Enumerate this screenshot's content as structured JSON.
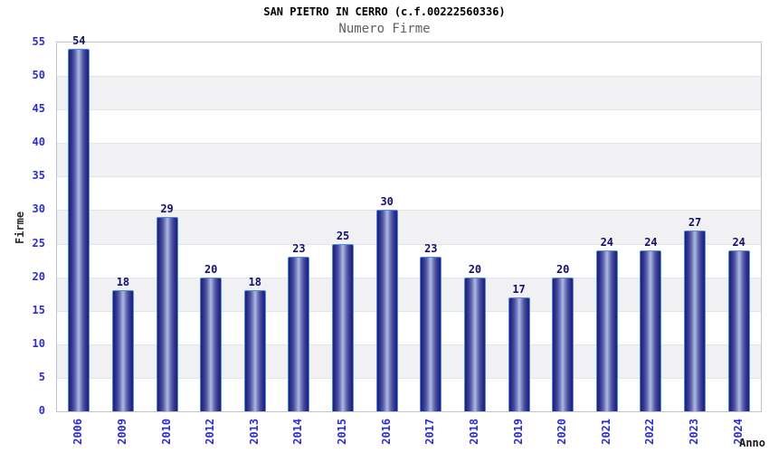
{
  "header": {
    "title": "SAN PIETRO IN CERRO (c.f.00222560336)",
    "subtitle": "Numero Firme"
  },
  "axes": {
    "ylabel": "Firme",
    "xlabel": "Anno"
  },
  "chart_data": {
    "type": "bar",
    "title": "SAN PIETRO IN CERRO (c.f.00222560336)",
    "subtitle": "Numero Firme",
    "xlabel": "Anno",
    "ylabel": "Firme",
    "categories": [
      "2006",
      "2009",
      "2010",
      "2012",
      "2013",
      "2014",
      "2015",
      "2016",
      "2017",
      "2018",
      "2019",
      "2020",
      "2021",
      "2022",
      "2023",
      "2024"
    ],
    "values": [
      54,
      18,
      29,
      20,
      18,
      23,
      25,
      30,
      23,
      20,
      17,
      20,
      24,
      24,
      27,
      24
    ],
    "ylim": [
      0,
      55
    ],
    "ytick_step": 5,
    "yticks": [
      0,
      5,
      10,
      15,
      20,
      25,
      30,
      35,
      40,
      45,
      50,
      55
    ],
    "grid": "horizontal gridlines every 5 with alternating white/gray bands",
    "legend": "none",
    "bar_value_labels": "above each bar",
    "colors": {
      "bar_dark": "#21216f",
      "bar_light": "#b2bae2",
      "bar_border": "#4a8ce8",
      "axis_tick_label": "#2d2dcf",
      "value_label": "#12126b",
      "band_gray": "#f1f1f4",
      "gridline": "#e3e3e8",
      "plot_border": "#bcc3d2",
      "subtitle_gray": "#5f5f5f"
    }
  }
}
